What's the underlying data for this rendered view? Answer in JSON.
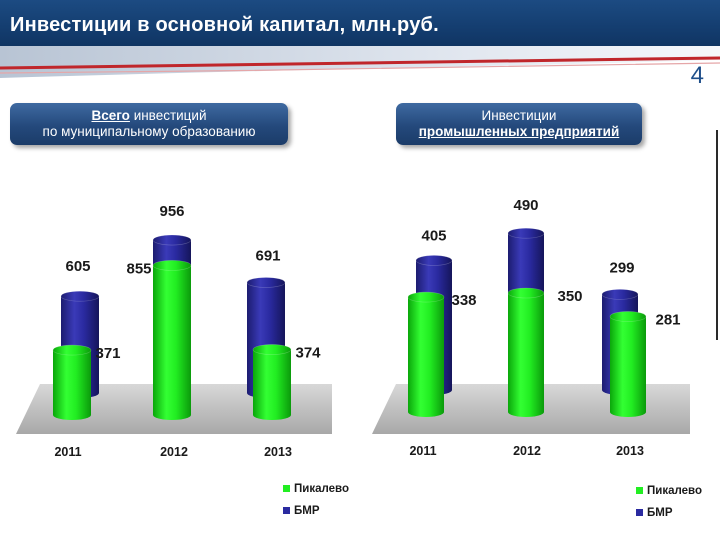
{
  "header": {
    "title": "Инвестиции в основной капитал, млн.руб.",
    "slide_number": "4"
  },
  "panels": {
    "left": {
      "title_bold": "Всего",
      "title_rest": " инвестиций",
      "title_line2": "по муниципальному образованию"
    },
    "right": {
      "title_line1": "Инвестиции",
      "title_line2": "промышленных  предприятий"
    }
  },
  "colors": {
    "green": "#22ee22",
    "blue": "#2a2aa0",
    "header": "#123a6b"
  },
  "chart_data": [
    {
      "type": "bar",
      "categories": [
        "2011",
        "2012",
        "2013"
      ],
      "series": [
        {
          "name": "БМР",
          "values": [
            605,
            956,
            691
          ]
        },
        {
          "name": "Пикалево",
          "values": [
            371,
            855,
            374
          ]
        }
      ],
      "ylim": [
        0,
        1100
      ],
      "legend": "bottom-right",
      "grid": false
    },
    {
      "type": "bar",
      "categories": [
        "2011",
        "2012",
        "2013"
      ],
      "series": [
        {
          "name": "БМР",
          "values": [
            405,
            490,
            299
          ]
        },
        {
          "name": "Пикалево",
          "values": [
            338,
            350,
            281
          ]
        }
      ],
      "ylim": [
        0,
        560
      ],
      "legend": "bottom-right",
      "grid": false
    }
  ]
}
